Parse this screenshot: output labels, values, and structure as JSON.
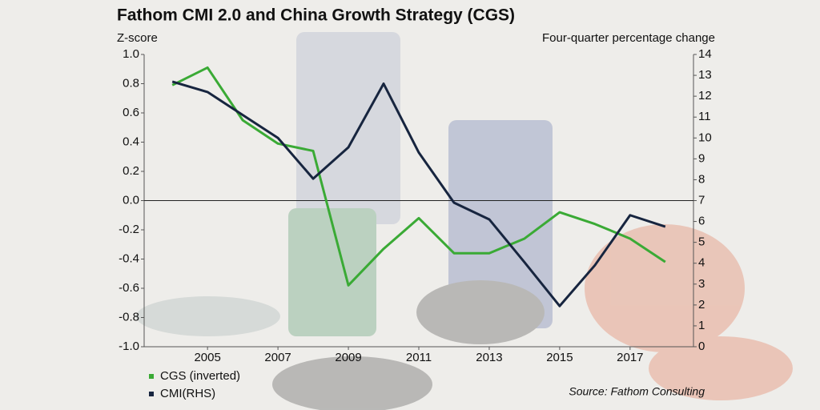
{
  "chart_data": {
    "type": "line",
    "title": "Fathom CMI 2.0 and China Growth Strategy (CGS)",
    "y_label": "Z-score",
    "y2_label": "Four-quarter percentage change",
    "source": "Source: Fathom Consulting",
    "x": [
      2004,
      2005,
      2006,
      2007,
      2008,
      2009,
      2010,
      2011,
      2012,
      2013,
      2014,
      2015,
      2016,
      2017,
      2018
    ],
    "xlim": [
      2003.2,
      2018.8
    ],
    "xticks": [
      2005,
      2007,
      2009,
      2011,
      2013,
      2015,
      2017
    ],
    "ylim": [
      -1,
      1
    ],
    "yticks": [
      {
        "value": 1,
        "label": "1.0"
      },
      0.8,
      0.6,
      0.4,
      0.2,
      {
        "value": 0,
        "label": "0.0"
      },
      -0.2,
      -0.4,
      -0.6,
      -0.8,
      {
        "value": -1,
        "label": "-1.0"
      }
    ],
    "y2lim": [
      0,
      14
    ],
    "y2ticks": [
      0,
      1,
      2,
      3,
      4,
      5,
      6,
      7,
      8,
      9,
      10,
      11,
      12,
      13,
      14
    ],
    "legend": "bottom-left",
    "series": [
      {
        "name": "CGS (inverted)",
        "color": "#3aaa35",
        "values": [
          0.79,
          0.91,
          0.55,
          0.39,
          0.34,
          -0.58,
          -0.33,
          -0.12,
          -0.36,
          -0.36,
          -0.26,
          -0.08,
          -0.16,
          -0.26,
          -0.42
        ]
      },
      {
        "name": "CMI(RHS)",
        "color": "#17253f",
        "axis": "y2",
        "values": [
          12.7,
          12.2,
          11.1,
          10.0,
          8.05,
          9.55,
          12.6,
          9.3,
          6.9,
          6.1,
          4.05,
          1.95,
          3.9,
          6.3,
          5.75
        ]
      }
    ]
  }
}
